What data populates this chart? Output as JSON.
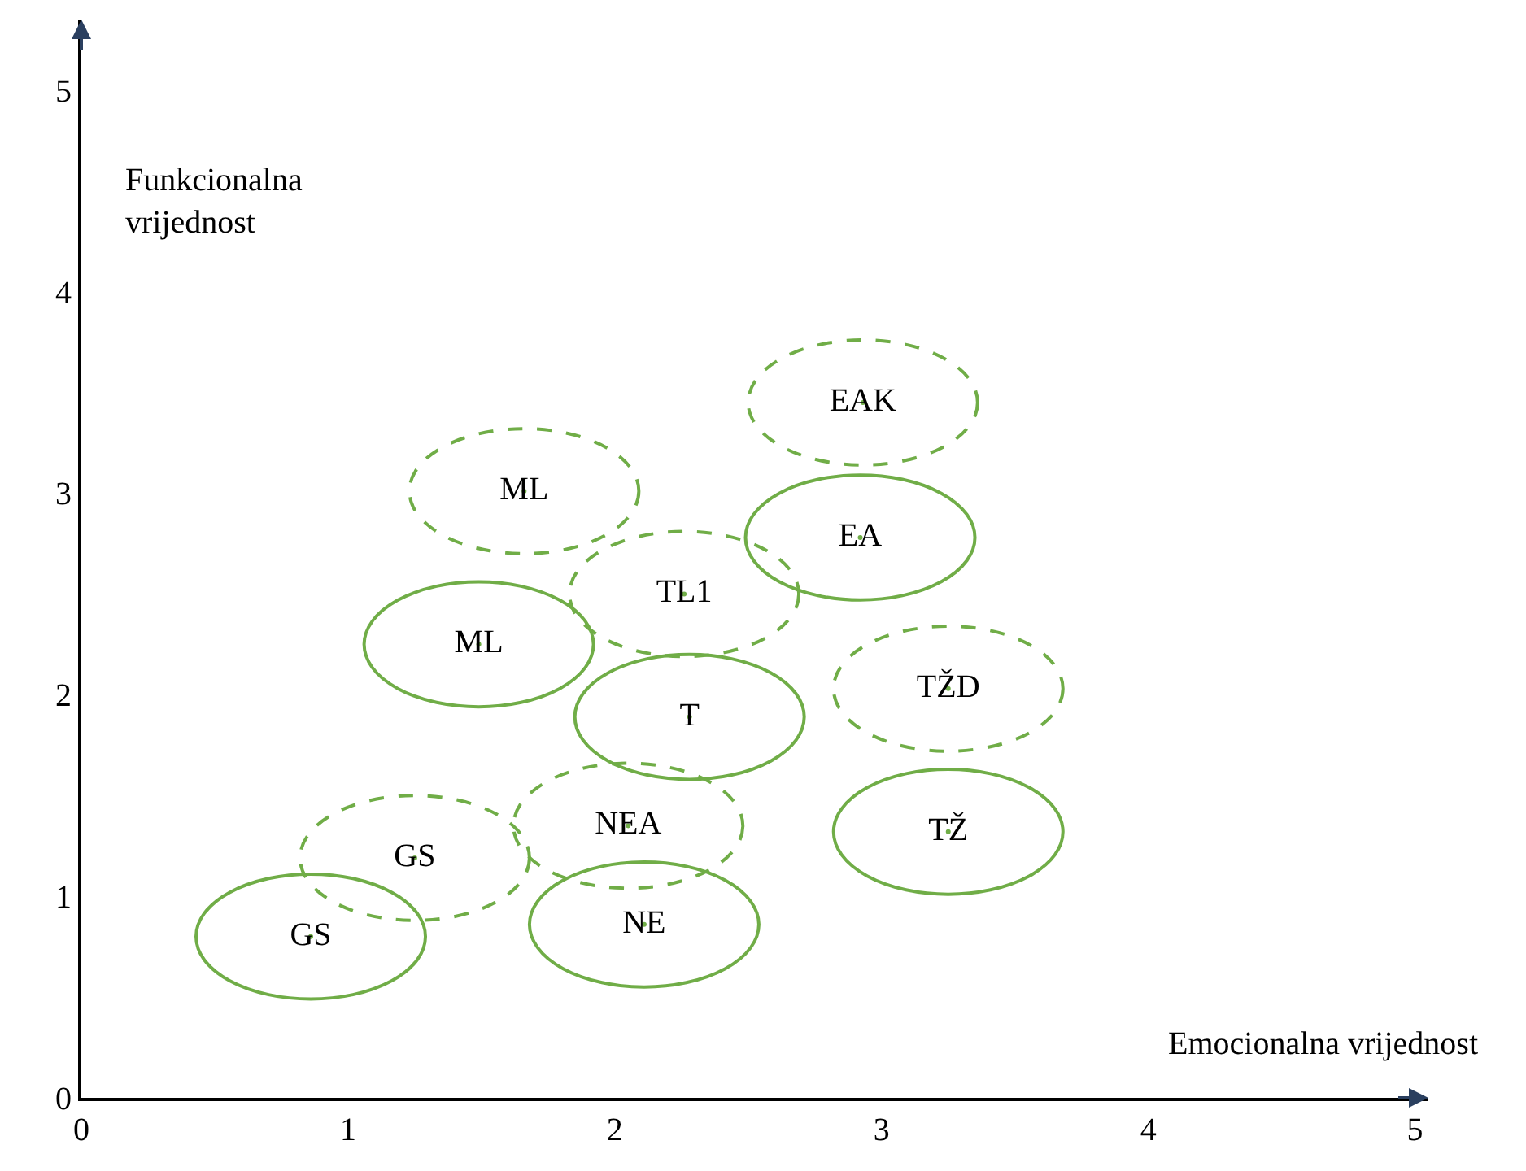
{
  "chart_data": {
    "type": "scatter",
    "xlabel": "Emocionalna vrijednost",
    "ylabel": "Funkcionalna vrijednost",
    "xlim": [
      0,
      5.05
    ],
    "ylim": [
      0,
      5.35
    ],
    "xticks": [
      0,
      1,
      2,
      3,
      4,
      5
    ],
    "yticks": [
      0,
      1,
      2,
      3,
      4,
      5
    ],
    "grid": false,
    "series": [
      {
        "color": "#70ad47",
        "line_style": "solid",
        "x": [
          0.86,
          2.11,
          2.28,
          1.49,
          2.92,
          3.25
        ],
        "values": [
          0.8,
          0.86,
          1.89,
          2.25,
          2.78,
          1.32
        ],
        "value_labels": [
          "GS",
          "NE",
          "T",
          "ML",
          "EA",
          "TŽ"
        ]
      },
      {
        "color": "#70ad47",
        "line_style": "dashed",
        "x": [
          1.25,
          2.05,
          2.26,
          1.66,
          2.93,
          3.25
        ],
        "values": [
          1.19,
          1.35,
          2.5,
          3.01,
          3.45,
          2.03
        ],
        "value_labels": [
          "GS",
          "NEA",
          "TL1",
          "ML",
          "EAK",
          "TŽD"
        ]
      }
    ]
  }
}
